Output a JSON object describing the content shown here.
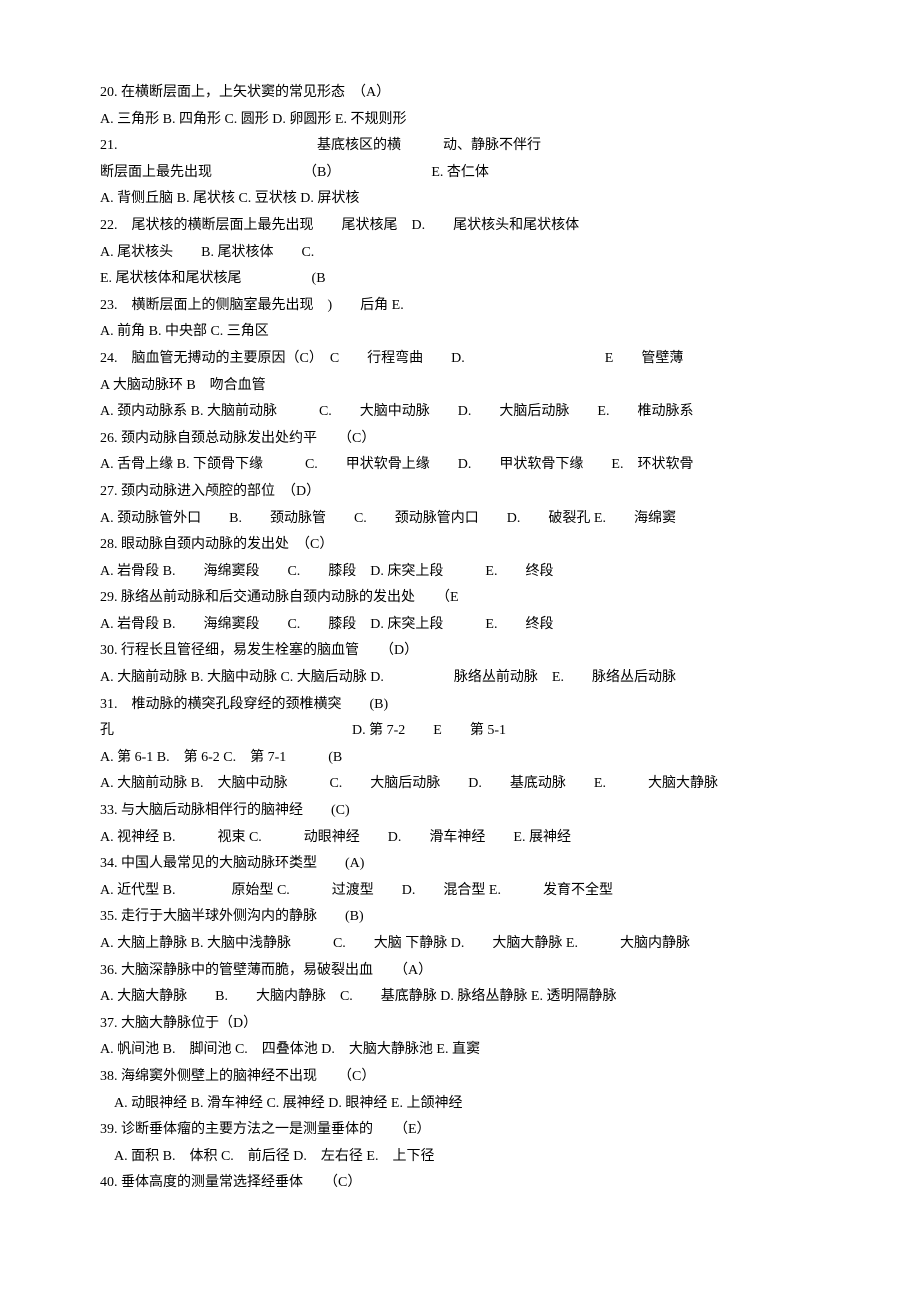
{
  "colors": {
    "text": "#000000",
    "background": "#ffffff"
  },
  "typography": {
    "font_family": "SimSun",
    "font_size_pt": 10.5,
    "line_height": 1.9
  },
  "questions": [
    {
      "stem": "20. 在横断层面上，上矢状窦的常见形态　（A）",
      "opts": "A. 三角形 B. 四角形 C. 圆形 D. 卵圆形 E. 不规则形"
    },
    {
      "stem": "21. 　　　　　　　　　　　　　　基底核区的横　　　动、静脉不伴行",
      "opts": "断层面上最先出现　　　　　　　（B）　　　　　　　E. 杏仁体"
    },
    {
      "stem": "A. 背侧丘脑 B. 尾状核 C. 豆状核 D. 屏状核",
      "opts": "22.　尾状核的横断层面上最先出现　　尾状核尾　D.　　尾状核头和尾状核体"
    },
    {
      "stem": "A. 尾状核头　　B. 尾状核体　　C.",
      "opts": "E. 尾状核体和尾状核尾　　　　　(B"
    },
    {
      "stem": "23.　横断层面上的侧脑室最先出现　)　　后角 E.",
      "opts": "A. 前角 B. 中央部 C. 三角区"
    },
    {
      "stem": "24.　脑血管无搏动的主要原因（C）　C　　行程弯曲　　D.　　　　　　　　　　E　　管壁薄",
      "opts": "A 大脑动脉环 B　吻合血管"
    },
    {
      "stem": "A. 颈内动脉系 B. 大脑前动脉　　　C.　　大脑中动脉　　D.　　大脑后动脉　　E.　　椎动脉系",
      "opts": ""
    },
    {
      "stem": "26. 颈内动脉自颈总动脉发出处约平　　（C）",
      "opts": "A. 舌骨上缘 B. 下颌骨下缘　　　C.　　甲状软骨上缘　　D.　　甲状软骨下缘　　E.　环状软骨"
    },
    {
      "stem": "27. 颈内动脉进入颅腔的部位　（D）",
      "opts": "A. 颈动脉管外口　　B.　　颈动脉管　　C.　　颈动脉管内口　　D.　　破裂孔 E.　　海绵窦"
    },
    {
      "stem": "28. 眼动脉自颈内动脉的发出处　（C）",
      "opts": "A. 岩骨段 B.　　海绵窦段　　C.　　膝段　D. 床突上段　　　E.　　终段"
    },
    {
      "stem": "29. 脉络丛前动脉和后交通动脉自颈内动脉的发出处　　（E",
      "opts": "A. 岩骨段 B.　　海绵窦段　　C.　　膝段　D. 床突上段　　　E.　　终段"
    },
    {
      "stem": "30. 行程长且管径细，易发生栓塞的脑血管　　（D）",
      "opts": "A. 大脑前动脉 B. 大脑中动脉 C. 大脑后动脉 D.　　　　　脉络丛前动脉　E.　　脉络丛后动脉"
    },
    {
      "stem": "31.　椎动脉的横突孔段穿经的颈椎横突　　(B)",
      "opts": "孔　　　　　　　　　　　　　　　　　D. 第 7-2　　E　　第 5-1"
    },
    {
      "stem": "A. 第 6-1 B.　第 6-2 C.　第 7-1　　　(B",
      "opts": "A. 大脑前动脉 B.　大脑中动脉　　　C.　　大脑后动脉　　D.　　基底动脉　　E.　　　大脑大静脉"
    },
    {
      "stem": "33. 与大脑后动脉相伴行的脑神经　　(C)",
      "opts": "A. 视神经 B.　　　视束 C.　　　动眼神经　　D.　　滑车神经　　E. 展神经"
    },
    {
      "stem": "34. 中国人最常见的大脑动脉环类型　　(A)",
      "opts": "A. 近代型 B.　　　　原始型 C.　　　过渡型　　D.　　混合型 E.　　　发育不全型"
    },
    {
      "stem": "35. 走行于大脑半球外侧沟内的静脉　　(B)",
      "opts": "A. 大脑上静脉 B. 大脑中浅静脉　　　C.　　大脑 下静脉 D.　　大脑大静脉 E.　　　大脑内静脉"
    },
    {
      "stem": "36. 大脑深静脉中的管壁薄而脆，易破裂出血　　（A）",
      "opts": "A. 大脑大静脉　　B.　　大脑内静脉　C.　　基底静脉 D. 脉络丛静脉 E. 透明隔静脉"
    },
    {
      "stem": "37. 大脑大静脉位于（D）",
      "opts": "A. 帆间池 B.　脚间池 C.　四叠体池 D.　大脑大静脉池 E. 直窦"
    },
    {
      "stem": "38. 海绵窦外侧壁上的脑神经不出现　　（C）",
      "opts": "　A. 动眼神经 B. 滑车神经 C. 展神经 D. 眼神经 E. 上颌神经"
    },
    {
      "stem": "39. 诊断垂体瘤的主要方法之一是测量垂体的　　（E）",
      "opts": "　A. 面积 B.　体积 C.　前后径 D.　左右径 E.　上下径"
    },
    {
      "stem": "40. 垂体高度的测量常选择经垂体　　（C）",
      "opts": ""
    }
  ]
}
